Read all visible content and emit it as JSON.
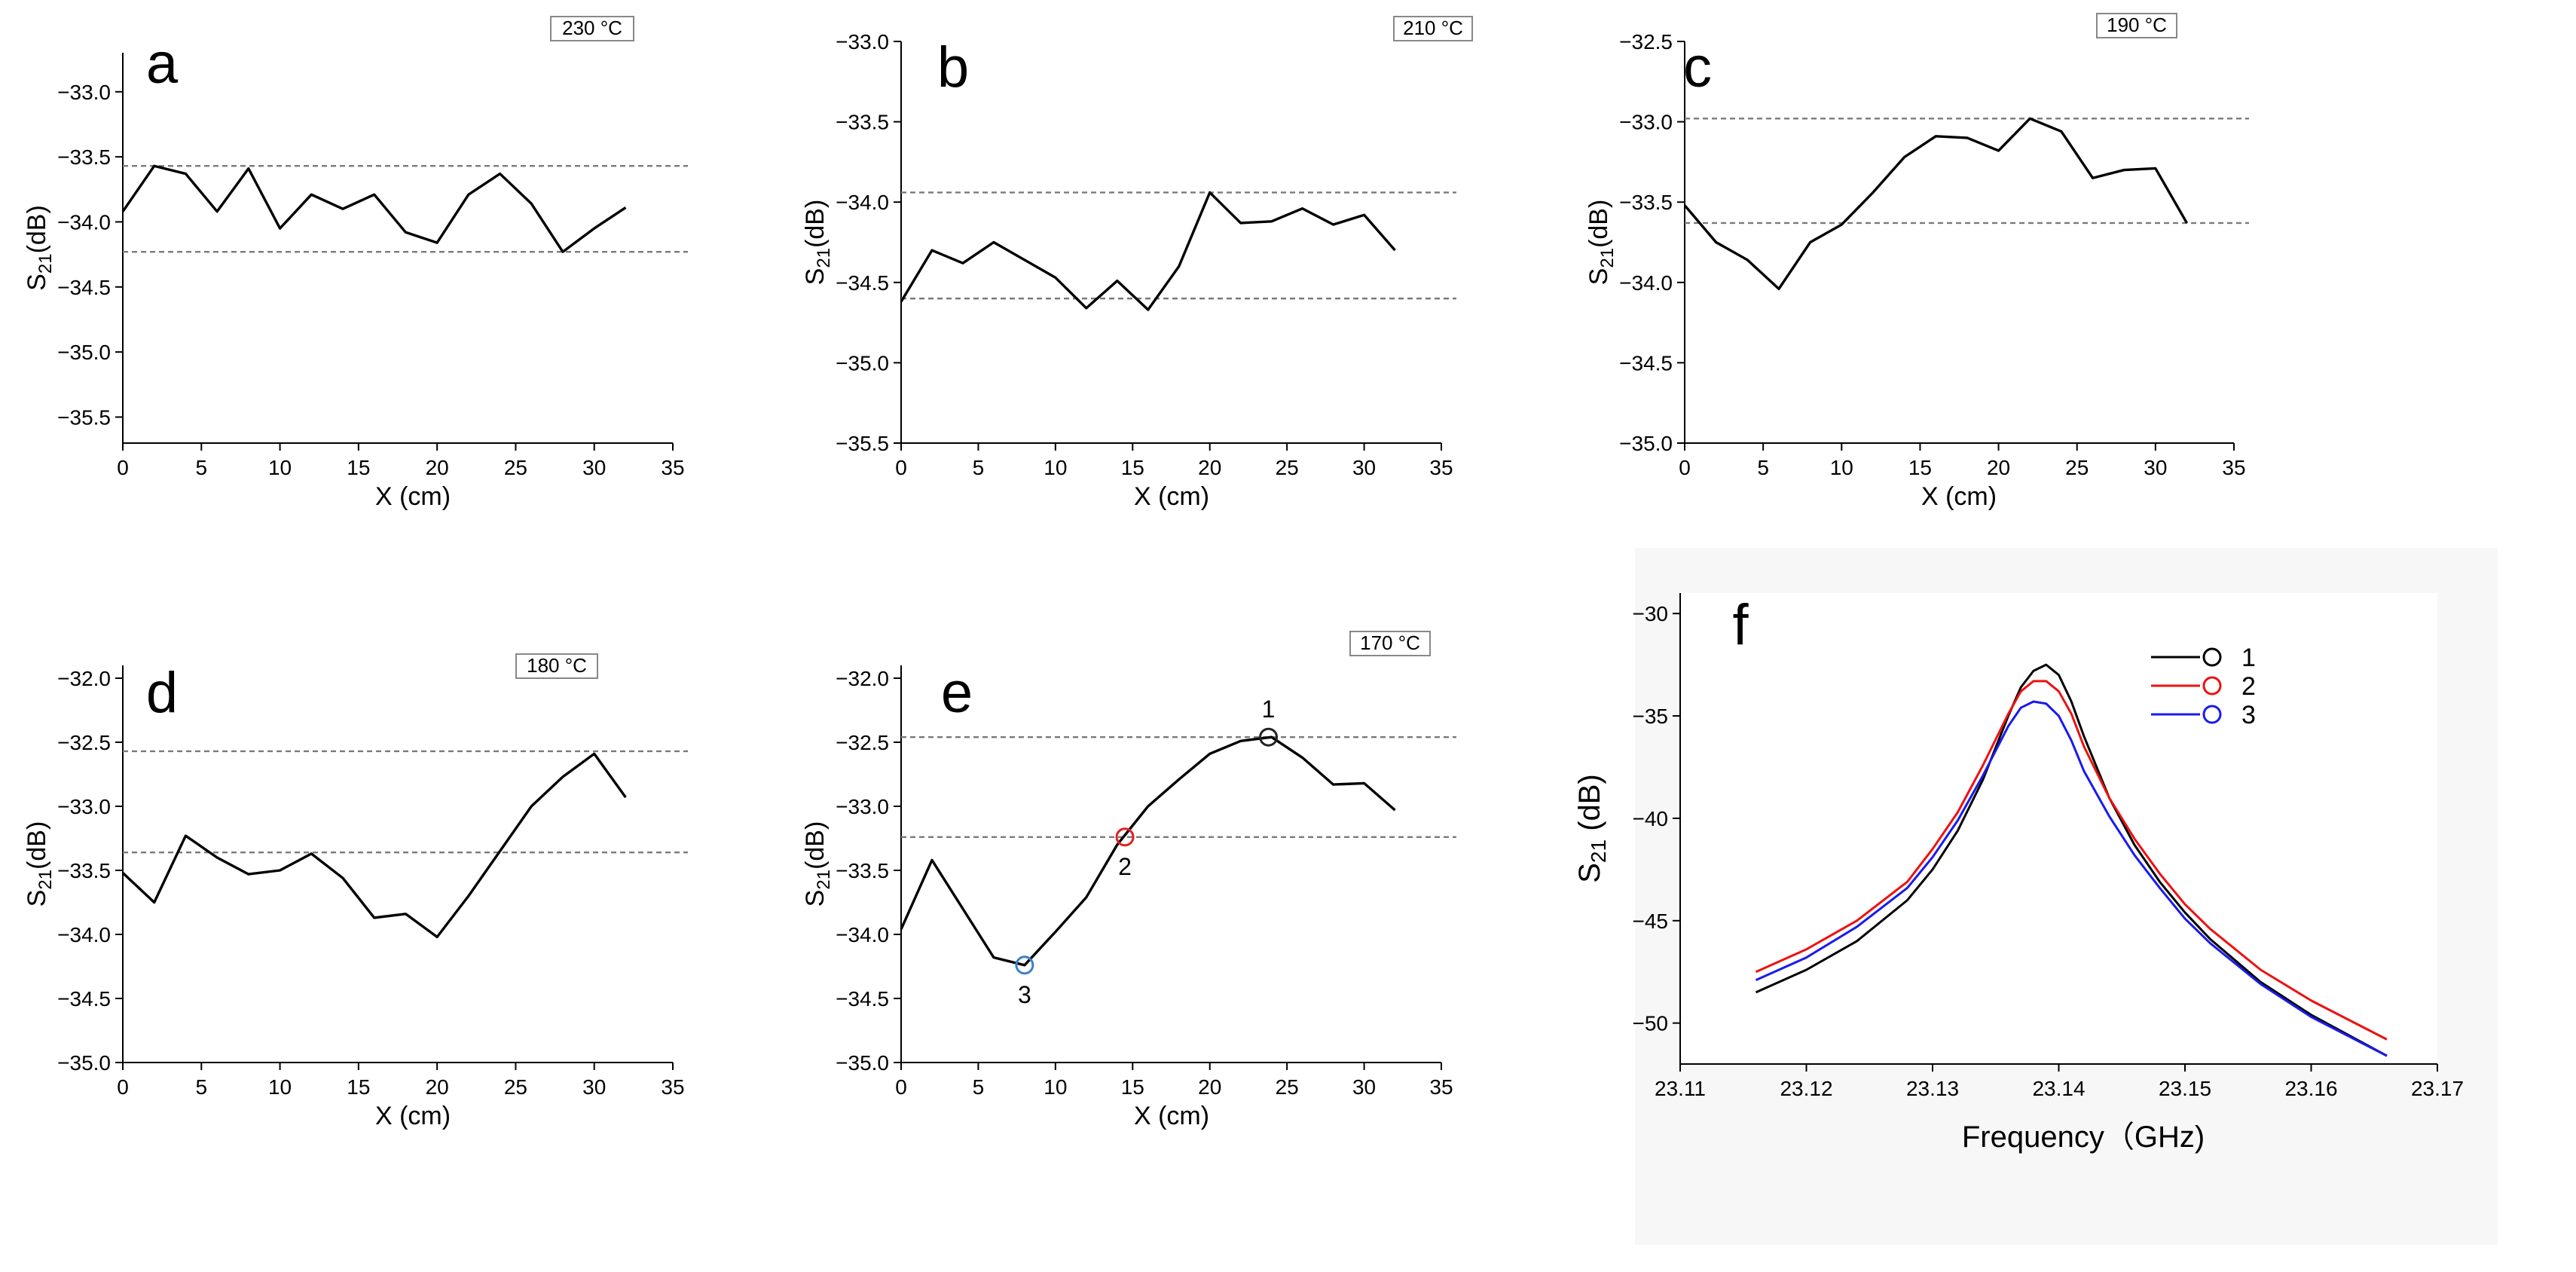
{
  "colors": {
    "series": "#000000",
    "ref_line": "#7a7a7a",
    "marker_1": "#222222",
    "marker_2": "#e02020",
    "marker_3": "#3a7fc8",
    "f_1": "#000000",
    "f_2": "#ee1111",
    "f_3": "#1a1aee"
  },
  "chart_data": [
    {
      "id": "a",
      "type": "line",
      "panel_label": "a",
      "temperature": "230 °C",
      "xlabel": "X (cm)",
      "ylabel": "S21(dB)",
      "xlim": [
        0,
        35
      ],
      "ylim": [
        -35.7,
        -32.7
      ],
      "xticks": [
        0,
        5,
        10,
        15,
        20,
        25,
        30,
        35
      ],
      "yticks": [
        -35.5,
        -35.0,
        -34.5,
        -34.0,
        -33.5,
        -33.0
      ],
      "ref_lines": [
        -33.57,
        -34.23
      ],
      "x": [
        0,
        2,
        4,
        6,
        8,
        10,
        12,
        14,
        16,
        18,
        20,
        22,
        24,
        26,
        28,
        30,
        32
      ],
      "values": [
        -33.92,
        -33.57,
        -33.63,
        -33.92,
        -33.59,
        -34.05,
        -33.79,
        -33.9,
        -33.79,
        -34.08,
        -34.16,
        -33.79,
        -33.63,
        -33.86,
        -34.23,
        -34.05,
        -33.89
      ]
    },
    {
      "id": "b",
      "type": "line",
      "panel_label": "b",
      "temperature": "210 °C",
      "xlabel": "X (cm)",
      "ylabel": "S21(dB)",
      "xlim": [
        0,
        35
      ],
      "ylim": [
        -35.5,
        -33.0
      ],
      "xticks": [
        0,
        5,
        10,
        15,
        20,
        25,
        30,
        35
      ],
      "yticks": [
        -35.5,
        -35.0,
        -34.5,
        -34.0,
        -33.5,
        -33.0
      ],
      "ref_lines": [
        -33.94,
        -34.6
      ],
      "x": [
        0,
        2,
        4,
        6,
        8,
        10,
        12,
        14,
        16,
        18,
        20,
        22,
        24,
        26,
        28,
        30,
        32
      ],
      "values": [
        -34.62,
        -34.3,
        -34.38,
        -34.25,
        -34.36,
        -34.47,
        -34.66,
        -34.49,
        -34.67,
        -34.4,
        -33.94,
        -34.13,
        -34.12,
        -34.04,
        -34.14,
        -34.08,
        -34.3
      ]
    },
    {
      "id": "c",
      "type": "line",
      "panel_label": "c",
      "temperature": "190 °C",
      "xlabel": "X (cm)",
      "ylabel": "S21(dB)",
      "xlim": [
        0,
        35
      ],
      "ylim": [
        -35.0,
        -32.5
      ],
      "xticks": [
        0,
        5,
        10,
        15,
        20,
        25,
        30,
        35
      ],
      "yticks": [
        -35.0,
        -34.5,
        -34.0,
        -33.5,
        -33.0,
        -32.5
      ],
      "ref_lines": [
        -32.98,
        -33.63
      ],
      "x": [
        0,
        2,
        4,
        6,
        8,
        10,
        12,
        14,
        16,
        18,
        20,
        22,
        24,
        26,
        28,
        30,
        32
      ],
      "values": [
        -33.52,
        -33.75,
        -33.86,
        -34.04,
        -33.75,
        -33.64,
        -33.44,
        -33.22,
        -33.09,
        -33.1,
        -33.18,
        -32.98,
        -33.06,
        -33.35,
        -33.3,
        -33.29,
        -33.63
      ]
    },
    {
      "id": "d",
      "type": "line",
      "panel_label": "d",
      "temperature": "180 °C",
      "xlabel": "X (cm)",
      "ylabel": "S21(dB)",
      "xlim": [
        0,
        35
      ],
      "ylim": [
        -35.0,
        -31.9
      ],
      "xticks": [
        0,
        5,
        10,
        15,
        20,
        25,
        30,
        35
      ],
      "yticks": [
        -35.0,
        -34.5,
        -34.0,
        -33.5,
        -33.0,
        -32.5,
        -32.0
      ],
      "ref_lines": [
        -32.57,
        -33.36
      ],
      "x": [
        0,
        2,
        4,
        6,
        8,
        10,
        12,
        14,
        16,
        18,
        20,
        22,
        24,
        26,
        28,
        30,
        32
      ],
      "values": [
        -33.52,
        -33.75,
        -33.23,
        -33.4,
        -33.53,
        -33.5,
        -33.37,
        -33.56,
        -33.87,
        -33.84,
        -34.02,
        -33.7,
        -33.35,
        -33.0,
        -32.77,
        -32.59,
        -32.93
      ]
    },
    {
      "id": "e",
      "type": "line",
      "panel_label": "e",
      "temperature": "170 °C",
      "xlabel": "X (cm)",
      "ylabel": "S21(dB)",
      "xlim": [
        0,
        35
      ],
      "ylim": [
        -35.0,
        -31.9
      ],
      "xticks": [
        0,
        5,
        10,
        15,
        20,
        25,
        30,
        35
      ],
      "yticks": [
        -35.0,
        -34.5,
        -34.0,
        -33.5,
        -33.0,
        -32.5,
        -32.0
      ],
      "ref_lines": [
        -32.46,
        -33.24
      ],
      "x": [
        0,
        2,
        4,
        6,
        8,
        10,
        12,
        14,
        16,
        18,
        20,
        22,
        24,
        26,
        28,
        30,
        32
      ],
      "values": [
        -33.96,
        -33.42,
        -33.8,
        -34.18,
        -34.24,
        -33.98,
        -33.71,
        -33.3,
        -33.0,
        -32.79,
        -32.59,
        -32.49,
        -32.46,
        -32.62,
        -32.83,
        -32.82,
        -33.03
      ],
      "markers": [
        {
          "label": "1",
          "x": 23.8,
          "y": -32.46,
          "color": "#222222"
        },
        {
          "label": "2",
          "x": 14.5,
          "y": -33.24,
          "color": "#e02020"
        },
        {
          "label": "3",
          "x": 8.0,
          "y": -34.24,
          "color": "#3a7fc8"
        }
      ]
    },
    {
      "id": "f",
      "type": "line",
      "panel_label": "f",
      "xlabel": "Frequency（GHz)",
      "ylabel": "S21 (dB)",
      "xlim": [
        23.11,
        23.17
      ],
      "ylim": [
        -52.0,
        -29.0
      ],
      "xticks": [
        23.11,
        23.12,
        23.13,
        23.14,
        23.15,
        23.16,
        23.17
      ],
      "yticks": [
        -50,
        -45,
        -40,
        -35,
        -30
      ],
      "x": [
        23.116,
        23.12,
        23.124,
        23.128,
        23.13,
        23.132,
        23.134,
        23.136,
        23.137,
        23.138,
        23.139,
        23.14,
        23.141,
        23.142,
        23.144,
        23.146,
        23.148,
        23.15,
        23.152,
        23.156,
        23.16,
        23.166
      ],
      "series": [
        {
          "name": "1",
          "values": [
            -48.5,
            -47.4,
            -46.0,
            -44.0,
            -42.5,
            -40.6,
            -38.1,
            -35.0,
            -33.6,
            -32.8,
            -32.5,
            -33.0,
            -34.3,
            -36.0,
            -39.0,
            -41.3,
            -43.1,
            -44.6,
            -45.9,
            -48.0,
            -49.6,
            -51.6
          ]
        },
        {
          "name": "2",
          "values": [
            -47.5,
            -46.4,
            -45.0,
            -43.1,
            -41.5,
            -39.7,
            -37.4,
            -34.9,
            -33.8,
            -33.3,
            -33.3,
            -33.8,
            -34.9,
            -36.5,
            -39.0,
            -41.0,
            -42.7,
            -44.2,
            -45.4,
            -47.4,
            -48.9,
            -50.8
          ]
        },
        {
          "name": "3",
          "values": [
            -47.9,
            -46.8,
            -45.3,
            -43.4,
            -41.9,
            -40.1,
            -37.9,
            -35.5,
            -34.6,
            -34.3,
            -34.4,
            -35.0,
            -36.2,
            -37.7,
            -39.9,
            -41.8,
            -43.4,
            -44.9,
            -46.1,
            -48.1,
            -49.7,
            -51.6
          ]
        }
      ]
    }
  ]
}
